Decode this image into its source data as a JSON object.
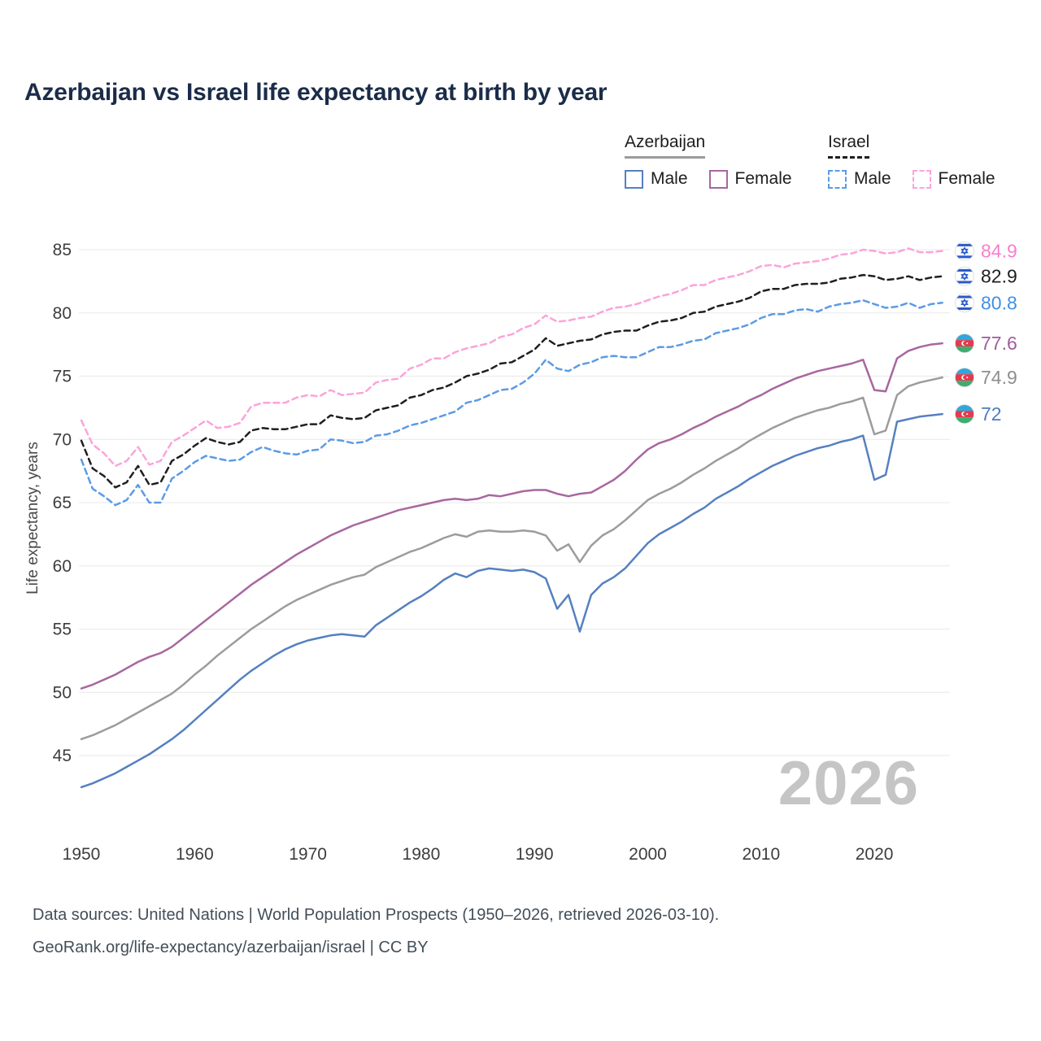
{
  "title": "Azerbaijan vs Israel life expectancy at birth by year",
  "watermark": "2026",
  "ylabel": "Life expectancy, years",
  "footer": {
    "line1": "Data sources: United Nations | World Population Prospects (1950–2026, retrieved 2026-03-10).",
    "line2": "GeoRank.org/life-expectancy/azerbaijan/israel | CC BY"
  },
  "legend": {
    "groups": [
      {
        "label": "Azerbaijan",
        "rule_color": "#9c9c9c",
        "rule_dashed": false,
        "items": [
          {
            "label": "Male",
            "color": "#5580c0",
            "dashed": false
          },
          {
            "label": "Female",
            "color": "#a8679f",
            "dashed": false
          }
        ]
      },
      {
        "label": "Israel",
        "rule_color": "#1f1f1f",
        "rule_dashed": true,
        "items": [
          {
            "label": "Male",
            "color": "#5b9be6",
            "dashed": true
          },
          {
            "label": "Female",
            "color": "#fba4da",
            "dashed": true
          }
        ]
      }
    ]
  },
  "chart_data": {
    "type": "line",
    "title": "Azerbaijan vs Israel life expectancy at birth by year",
    "xlabel": "",
    "ylabel": "Life expectancy, years",
    "x_start": 1950,
    "x_end": 2026,
    "x_step": 1,
    "x_ticks": [
      1950,
      1960,
      1970,
      1980,
      1990,
      2000,
      2010,
      2020
    ],
    "y_ticks": [
      45,
      50,
      55,
      60,
      65,
      70,
      75,
      80,
      85
    ],
    "ylim": [
      41.5,
      86.5
    ],
    "grid": true,
    "legend_position": "top-right",
    "series": [
      {
        "id": "israel-female",
        "name": "Israel Female",
        "flag": "israel",
        "color": "#fba4da",
        "label_color": "#f87fcd",
        "dashed": true,
        "end_label": "84.9",
        "values": [
          71.5,
          69.6,
          68.9,
          67.9,
          68.3,
          69.4,
          68.0,
          68.3,
          69.8,
          70.3,
          70.9,
          71.5,
          70.9,
          71.0,
          71.3,
          72.6,
          72.9,
          72.9,
          72.9,
          73.3,
          73.5,
          73.4,
          73.9,
          73.5,
          73.6,
          73.7,
          74.5,
          74.7,
          74.8,
          75.6,
          75.9,
          76.4,
          76.4,
          76.9,
          77.2,
          77.4,
          77.6,
          78.1,
          78.3,
          78.8,
          79.1,
          79.8,
          79.3,
          79.4,
          79.6,
          79.7,
          80.1,
          80.4,
          80.5,
          80.7,
          81.0,
          81.3,
          81.5,
          81.8,
          82.2,
          82.2,
          82.6,
          82.8,
          83.0,
          83.3,
          83.7,
          83.8,
          83.6,
          83.9,
          84.0,
          84.1,
          84.3,
          84.6,
          84.7,
          85.0,
          84.9,
          84.7,
          84.8,
          85.1,
          84.8,
          84.8,
          84.9
        ]
      },
      {
        "id": "israel-total",
        "name": "Israel",
        "flag": "israel",
        "color": "#1f1f1f",
        "label_color": "#1f1f1f",
        "dashed": true,
        "end_label": "82.9",
        "values": [
          69.9,
          67.7,
          67.1,
          66.2,
          66.6,
          67.9,
          66.4,
          66.6,
          68.3,
          68.8,
          69.5,
          70.1,
          69.8,
          69.6,
          69.8,
          70.7,
          70.9,
          70.8,
          70.8,
          71.0,
          71.2,
          71.2,
          71.9,
          71.7,
          71.6,
          71.7,
          72.3,
          72.5,
          72.7,
          73.3,
          73.5,
          73.9,
          74.1,
          74.5,
          75.0,
          75.2,
          75.5,
          76.0,
          76.1,
          76.6,
          77.1,
          78.0,
          77.4,
          77.6,
          77.8,
          77.9,
          78.3,
          78.5,
          78.6,
          78.6,
          79.0,
          79.3,
          79.4,
          79.6,
          80.0,
          80.1,
          80.5,
          80.7,
          80.9,
          81.2,
          81.7,
          81.9,
          81.9,
          82.2,
          82.3,
          82.3,
          82.4,
          82.7,
          82.8,
          83.0,
          82.9,
          82.6,
          82.7,
          82.9,
          82.6,
          82.8,
          82.9
        ]
      },
      {
        "id": "israel-male",
        "name": "Israel Male",
        "flag": "israel",
        "color": "#5b9be6",
        "label_color": "#4190e0",
        "dashed": true,
        "end_label": "80.8",
        "values": [
          68.4,
          66.1,
          65.5,
          64.8,
          65.2,
          66.4,
          65.0,
          65.0,
          66.9,
          67.5,
          68.2,
          68.7,
          68.5,
          68.3,
          68.4,
          69.0,
          69.4,
          69.1,
          68.9,
          68.8,
          69.1,
          69.2,
          70.0,
          69.9,
          69.7,
          69.8,
          70.3,
          70.4,
          70.7,
          71.1,
          71.3,
          71.6,
          71.9,
          72.2,
          72.9,
          73.1,
          73.5,
          73.9,
          74.0,
          74.5,
          75.2,
          76.3,
          75.6,
          75.4,
          75.9,
          76.1,
          76.5,
          76.6,
          76.5,
          76.5,
          76.9,
          77.3,
          77.3,
          77.5,
          77.8,
          77.9,
          78.4,
          78.6,
          78.8,
          79.1,
          79.6,
          79.9,
          79.9,
          80.2,
          80.3,
          80.1,
          80.5,
          80.7,
          80.8,
          81.0,
          80.7,
          80.4,
          80.5,
          80.8,
          80.4,
          80.7,
          80.8
        ]
      },
      {
        "id": "azerbaijan-female",
        "name": "Azerbaijan Female",
        "flag": "azerbaijan",
        "color": "#a8679f",
        "label_color": "#a25b9c",
        "dashed": false,
        "end_label": "77.6",
        "values": [
          50.3,
          50.6,
          51.0,
          51.4,
          51.9,
          52.4,
          52.8,
          53.1,
          53.6,
          54.3,
          55.0,
          55.7,
          56.4,
          57.1,
          57.8,
          58.5,
          59.1,
          59.7,
          60.3,
          60.9,
          61.4,
          61.9,
          62.4,
          62.8,
          63.2,
          63.5,
          63.8,
          64.1,
          64.4,
          64.6,
          64.8,
          65.0,
          65.2,
          65.3,
          65.2,
          65.3,
          65.6,
          65.5,
          65.7,
          65.9,
          66.0,
          66.0,
          65.7,
          65.5,
          65.7,
          65.8,
          66.3,
          66.8,
          67.5,
          68.4,
          69.2,
          69.7,
          70.0,
          70.4,
          70.9,
          71.3,
          71.8,
          72.2,
          72.6,
          73.1,
          73.5,
          74.0,
          74.4,
          74.8,
          75.1,
          75.4,
          75.6,
          75.8,
          76.0,
          76.3,
          73.9,
          73.8,
          76.4,
          77.0,
          77.3,
          77.5,
          77.6
        ]
      },
      {
        "id": "azerbaijan-total",
        "name": "Azerbaijan",
        "flag": "azerbaijan",
        "color": "#9c9c9c",
        "label_color": "#8e8e8e",
        "dashed": false,
        "end_label": "74.9",
        "values": [
          46.3,
          46.6,
          47.0,
          47.4,
          47.9,
          48.4,
          48.9,
          49.4,
          49.9,
          50.6,
          51.4,
          52.1,
          52.9,
          53.6,
          54.3,
          55.0,
          55.6,
          56.2,
          56.8,
          57.3,
          57.7,
          58.1,
          58.5,
          58.8,
          59.1,
          59.3,
          59.9,
          60.3,
          60.7,
          61.1,
          61.4,
          61.8,
          62.2,
          62.5,
          62.3,
          62.7,
          62.8,
          62.7,
          62.7,
          62.8,
          62.7,
          62.4,
          61.2,
          61.7,
          60.3,
          61.6,
          62.4,
          62.9,
          63.6,
          64.4,
          65.2,
          65.7,
          66.1,
          66.6,
          67.2,
          67.7,
          68.3,
          68.8,
          69.3,
          69.9,
          70.4,
          70.9,
          71.3,
          71.7,
          72.0,
          72.3,
          72.5,
          72.8,
          73.0,
          73.3,
          70.4,
          70.7,
          73.5,
          74.2,
          74.5,
          74.7,
          74.9
        ]
      },
      {
        "id": "azerbaijan-male",
        "name": "Azerbaijan Male",
        "flag": "azerbaijan",
        "color": "#5580c0",
        "label_color": "#4d7ec0",
        "dashed": false,
        "end_label": "72",
        "values": [
          42.5,
          42.8,
          43.2,
          43.6,
          44.1,
          44.6,
          45.1,
          45.7,
          46.3,
          47.0,
          47.8,
          48.6,
          49.4,
          50.2,
          51.0,
          51.7,
          52.3,
          52.9,
          53.4,
          53.8,
          54.1,
          54.3,
          54.5,
          54.6,
          54.5,
          54.4,
          55.3,
          55.9,
          56.5,
          57.1,
          57.6,
          58.2,
          58.9,
          59.4,
          59.1,
          59.6,
          59.8,
          59.7,
          59.6,
          59.7,
          59.5,
          59.0,
          56.6,
          57.7,
          54.8,
          57.7,
          58.6,
          59.1,
          59.8,
          60.8,
          61.8,
          62.5,
          63.0,
          63.5,
          64.1,
          64.6,
          65.3,
          65.8,
          66.3,
          66.9,
          67.4,
          67.9,
          68.3,
          68.7,
          69.0,
          69.3,
          69.5,
          69.8,
          70.0,
          70.3,
          66.8,
          67.2,
          71.4,
          71.6,
          71.8,
          71.9,
          72.0
        ]
      }
    ]
  }
}
